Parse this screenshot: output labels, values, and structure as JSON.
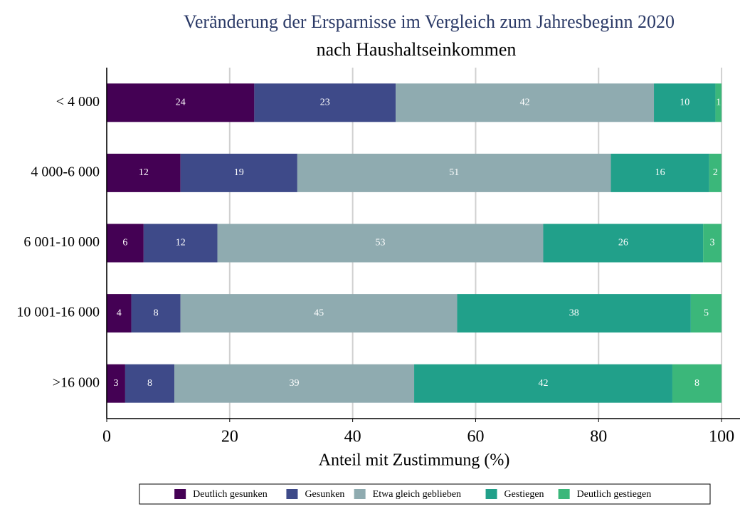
{
  "chart_data": {
    "type": "stacked_barh",
    "title": "Veränderung der Ersparnisse im Vergleich zum Jahresbeginn 2020",
    "subtitle": "nach Haushaltseinkommen",
    "xlabel": "Anteil mit Zustimmung (%)",
    "categories": [
      "< 4 000",
      "4 000-6 000",
      "6 001-10 000",
      "10 001-16 000",
      ">16 000"
    ],
    "series": [
      {
        "name": "Deutlich gesunken",
        "color": "#440154",
        "values": [
          24,
          12,
          6,
          4,
          3
        ]
      },
      {
        "name": "Gesunken",
        "color": "#3e4a89",
        "values": [
          23,
          19,
          12,
          8,
          8
        ]
      },
      {
        "name": "Etwa gleich geblieben",
        "color": "#8fabb0",
        "values": [
          42,
          51,
          53,
          45,
          39
        ]
      },
      {
        "name": "Gestiegen",
        "color": "#21a08a",
        "values": [
          10,
          16,
          26,
          38,
          42
        ]
      },
      {
        "name": "Deutlich gestiegen",
        "color": "#3bb77a",
        "values": [
          1,
          2,
          3,
          5,
          8
        ]
      }
    ],
    "xlim": [
      0,
      103
    ],
    "xticks": [
      0,
      20,
      40,
      60,
      80,
      100
    ],
    "grid": true,
    "legend": "bottom"
  }
}
